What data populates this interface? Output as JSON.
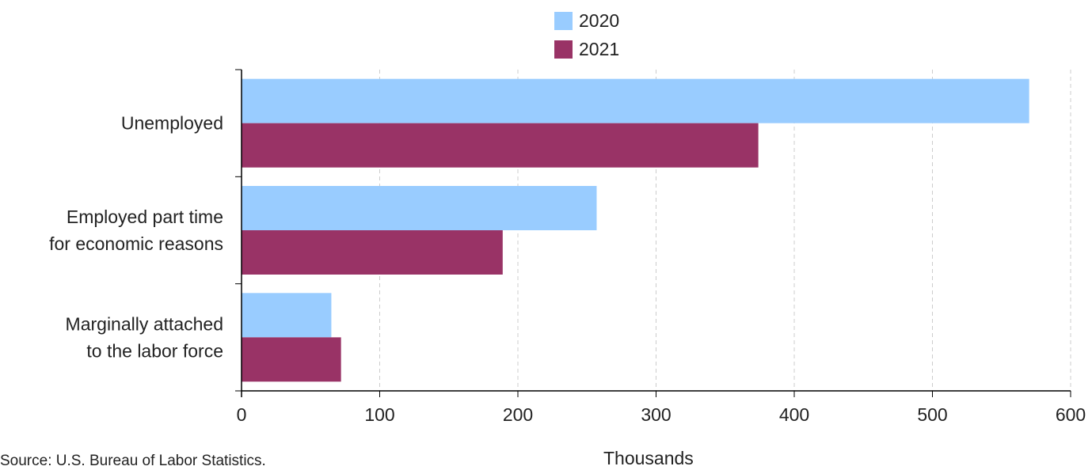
{
  "colors": {
    "series_2020": "#99ccff",
    "series_2021": "#993366",
    "grid": "#cccccc",
    "axis": "#000000",
    "text": "#222222"
  },
  "legend": [
    {
      "label": "2020"
    },
    {
      "label": "2021"
    }
  ],
  "source_note": "Source: U.S. Bureau of Labor Statistics.",
  "chart_data": {
    "type": "bar",
    "orientation": "horizontal",
    "title": "",
    "xlabel": "Thousands",
    "ylabel": "",
    "xlim": [
      0,
      600
    ],
    "xticks": [
      0,
      100,
      200,
      300,
      400,
      500,
      600
    ],
    "grid": true,
    "legend_position": "top",
    "categories": [
      [
        "Unemployed"
      ],
      [
        "Employed part time",
        "for economic reasons"
      ],
      [
        "Marginally attached",
        "to the labor force"
      ]
    ],
    "series": [
      {
        "name": "2020",
        "values": [
          570,
          257,
          65
        ]
      },
      {
        "name": "2021",
        "values": [
          374,
          189,
          72
        ]
      }
    ]
  }
}
